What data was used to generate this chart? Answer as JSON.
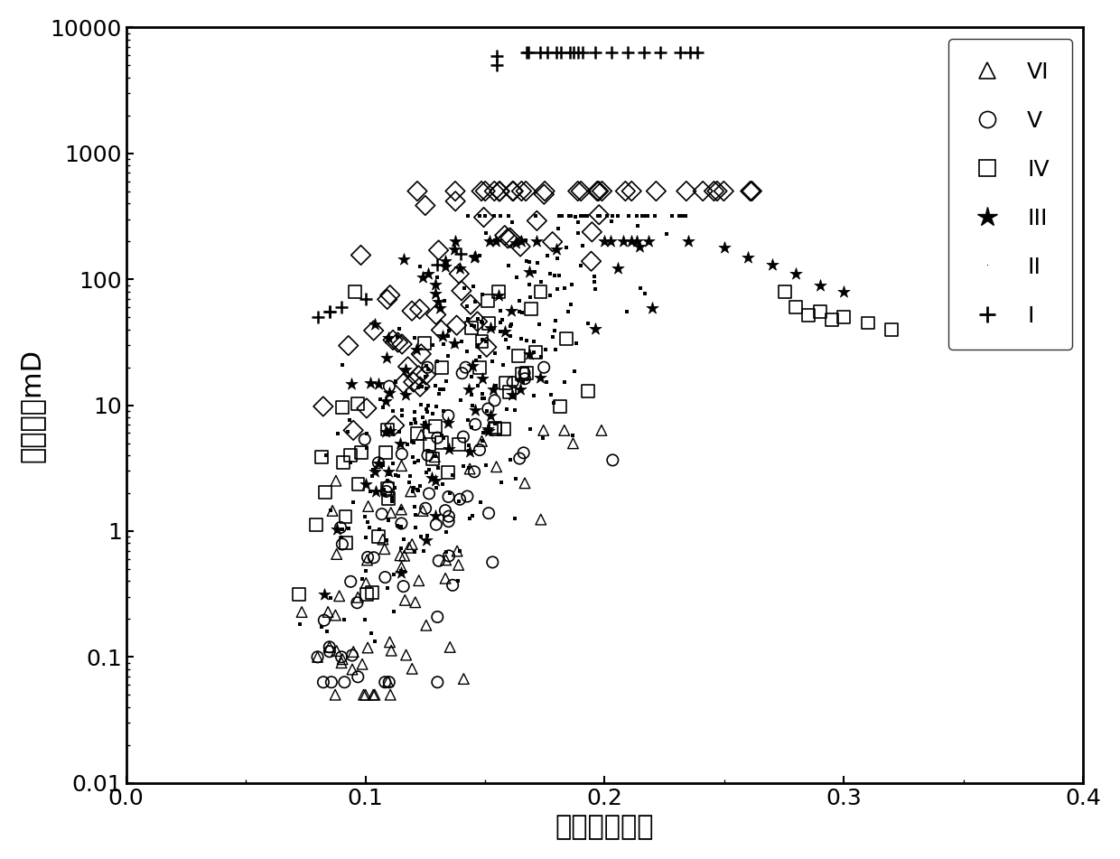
{
  "xlabel": "孔隙度，小数",
  "ylabel": "渗透率，mD",
  "xlim": [
    0.0,
    0.4
  ],
  "ylim_log": [
    0.01,
    10000
  ],
  "legend_labels": [
    "VI",
    "V",
    "IV",
    "III",
    "II",
    "I"
  ],
  "xlabel_fontsize": 22,
  "ylabel_fontsize": 22,
  "tick_fontsize": 18,
  "legend_fontsize": 18,
  "background_color": "#ffffff",
  "figsize": [
    12.4,
    9.51
  ],
  "dpi": 100
}
